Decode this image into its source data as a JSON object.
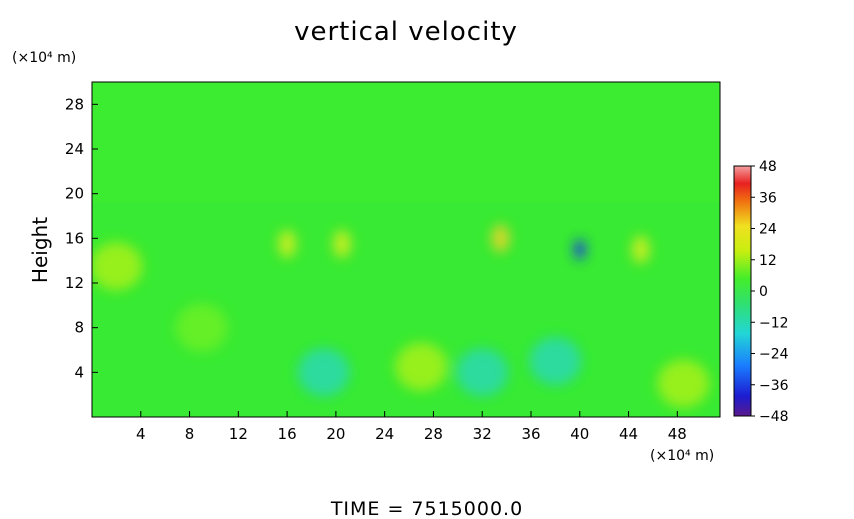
{
  "chart_data": {
    "type": "heatmap",
    "title": "vertical velocity",
    "ylabel": "Height",
    "x_unit": "(×10⁴ m)",
    "y_unit": "(×10⁴ m)",
    "xlim": [
      0,
      51.5
    ],
    "ylim": [
      0,
      30
    ],
    "x_ticks": [
      4,
      8,
      12,
      16,
      20,
      24,
      28,
      32,
      36,
      40,
      44,
      48
    ],
    "y_ticks": [
      4,
      8,
      12,
      16,
      20,
      24,
      28
    ],
    "colorbar": {
      "ticks": [
        48,
        36,
        24,
        12,
        0,
        -12,
        -24,
        -36,
        -48
      ],
      "range": [
        -48,
        48
      ]
    },
    "features": [
      {
        "x": 40,
        "y": 15,
        "value": -36
      },
      {
        "x": 33.5,
        "y": 16,
        "value": 20
      },
      {
        "x": 16,
        "y": 15.5,
        "value": 16
      },
      {
        "x": 20.5,
        "y": 15.5,
        "value": 14
      },
      {
        "x": 45,
        "y": 15,
        "value": 16
      },
      {
        "x": 2,
        "y": 13.5,
        "value": 8
      },
      {
        "x": 27,
        "y": 4.5,
        "value": 8
      },
      {
        "x": 48.5,
        "y": 3,
        "value": 8
      },
      {
        "x": 38,
        "y": 5,
        "value": -8
      },
      {
        "x": 19,
        "y": 4,
        "value": -8
      },
      {
        "x": 32,
        "y": 4,
        "value": -6
      },
      {
        "x": 9,
        "y": 8,
        "value": 4
      }
    ],
    "footer": "TIME  =  7515000.0"
  }
}
